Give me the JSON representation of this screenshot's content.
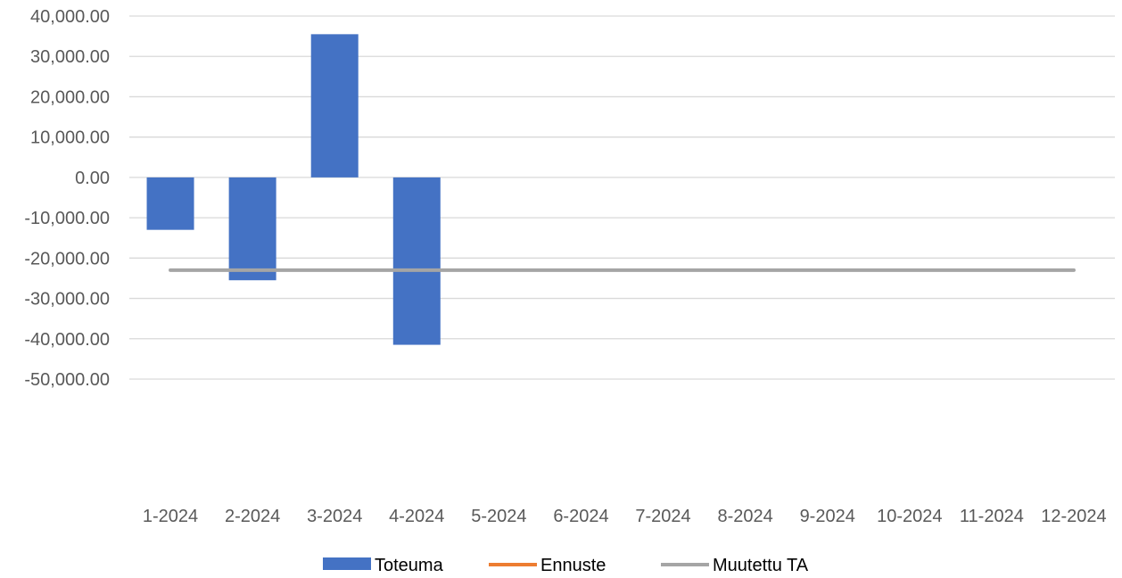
{
  "chart_data": {
    "type": "bar",
    "categories": [
      "1-2024",
      "2-2024",
      "3-2024",
      "4-2024",
      "5-2024",
      "6-2024",
      "7-2024",
      "8-2024",
      "9-2024",
      "10-2024",
      "11-2024",
      "12-2024"
    ],
    "series": [
      {
        "name": "Toteuma",
        "type": "bar",
        "color": "#4472C4",
        "values": [
          -13000,
          -25500,
          35500,
          -41500,
          null,
          null,
          null,
          null,
          null,
          null,
          null,
          null
        ]
      },
      {
        "name": "Ennuste",
        "type": "line",
        "color": "#ED7D31",
        "values": [
          null,
          null,
          null,
          null,
          null,
          null,
          null,
          null,
          null,
          null,
          null,
          null
        ]
      },
      {
        "name": "Muutettu TA",
        "type": "line",
        "color": "#A5A5A5",
        "values": [
          -23000,
          -23000,
          -23000,
          -23000,
          -23000,
          -23000,
          -23000,
          -23000,
          -23000,
          -23000,
          -23000,
          -23000
        ]
      }
    ],
    "yticks": [
      "40,000.00",
      "30,000.00",
      "20,000.00",
      "10,000.00",
      "0.00",
      "-10,000.00",
      "-20,000.00",
      "-30,000.00",
      "-40,000.00",
      "-50,000.00"
    ],
    "ylim": [
      -50000,
      40000
    ],
    "grid": true,
    "gridColor": "#D9D9D9",
    "legend_position": "bottom"
  }
}
